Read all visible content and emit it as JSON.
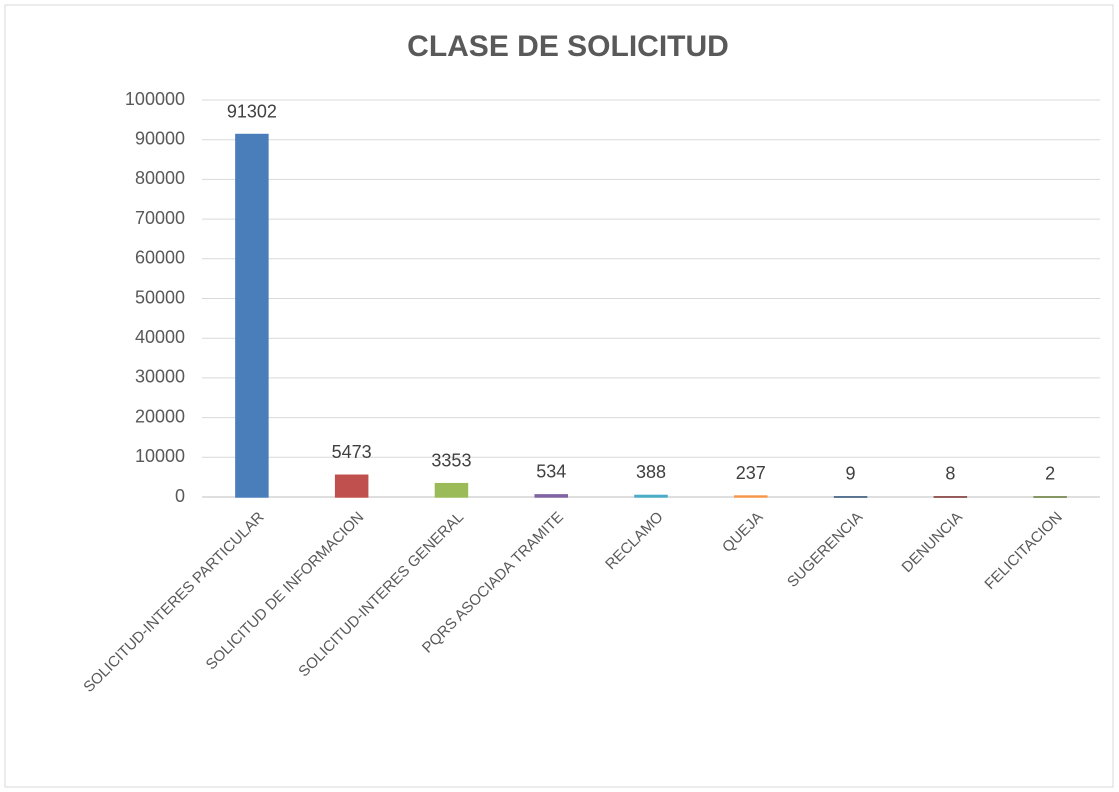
{
  "chart_data": {
    "type": "bar",
    "title": "CLASE DE SOLICITUD",
    "categories": [
      "SOLICITUD-INTERES PARTICULAR",
      "SOLICITUD DE INFORMACION",
      "SOLICITUD-INTERES GENERAL",
      "PQRS ASOCIADA TRAMITE",
      "RECLAMO",
      "QUEJA",
      "SUGERENCIA",
      "DENUNCIA",
      "FELICITACION"
    ],
    "values": [
      91302,
      5473,
      3353,
      534,
      388,
      237,
      9,
      8,
      2
    ],
    "colors": [
      "#4a7ebb",
      "#c0504d",
      "#9bbb59",
      "#8064a2",
      "#4bacc6",
      "#f79646",
      "#2c4d75",
      "#772c2a",
      "#5f7530"
    ],
    "ylim": [
      0,
      100000
    ],
    "yticks": [
      0,
      10000,
      20000,
      30000,
      40000,
      50000,
      60000,
      70000,
      80000,
      90000,
      100000
    ],
    "grid": true
  }
}
